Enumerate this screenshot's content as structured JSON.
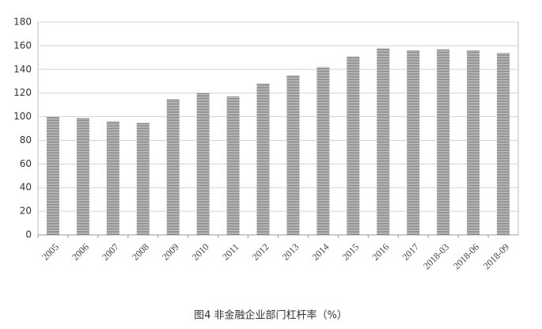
{
  "chart_data": {
    "type": "bar",
    "title": "图4 非金融企业部门杠杆率（%）",
    "categories": [
      "2005",
      "2006",
      "2007",
      "2008",
      "2009",
      "2010",
      "2011",
      "2012",
      "2013",
      "2014",
      "2015",
      "2016",
      "2017",
      "2018-03",
      "2018-06",
      "2018-09"
    ],
    "values": [
      100,
      99,
      96,
      95,
      115,
      120,
      117,
      128,
      135,
      142,
      151,
      158,
      156,
      157,
      156,
      154
    ],
    "color": "#7a7a7a",
    "ylim": [
      0,
      180
    ],
    "yticks": [
      0,
      20,
      40,
      60,
      80,
      100,
      120,
      140,
      160,
      180
    ],
    "grid": true
  }
}
